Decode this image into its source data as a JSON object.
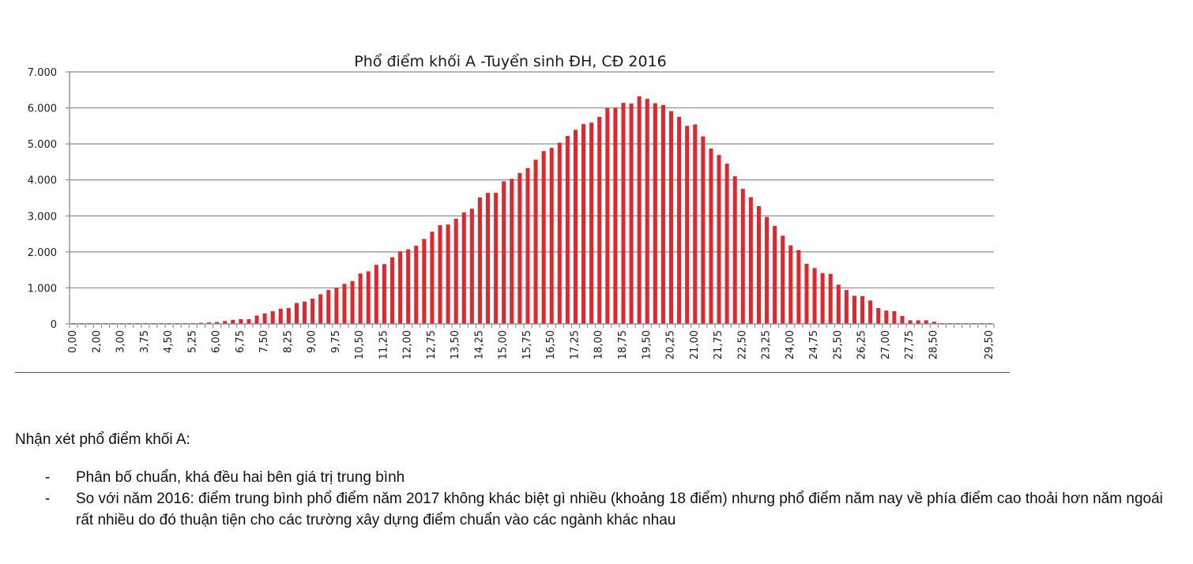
{
  "chart_data": {
    "type": "bar",
    "title": "Phổ điểm khối A -Tuyển sinh ĐH, CĐ 2016",
    "xlabel": "",
    "ylabel": "",
    "ylim": [
      0,
      7000
    ],
    "yticks": [
      "0",
      "1.000",
      "2.000",
      "3.000",
      "4.000",
      "5.000",
      "6.000",
      "7.000"
    ],
    "grid": true,
    "legend": null,
    "bar_color": "#e3262b",
    "xtick_labels": [
      "0,00",
      "2,00",
      "3,00",
      "3,75",
      "4,50",
      "5,25",
      "6,00",
      "6,75",
      "7,50",
      "8,25",
      "9,00",
      "9,75",
      "10,50",
      "11,25",
      "12,00",
      "12,75",
      "13,50",
      "14,25",
      "15,00",
      "15,75",
      "16,50",
      "17,25",
      "18,00",
      "18,75",
      "19,50",
      "20,25",
      "21,00",
      "21,75",
      "22,50",
      "23,25",
      "24,00",
      "24,75",
      "25,50",
      "26,25",
      "27,00",
      "27,75",
      "28,50",
      "29,50"
    ],
    "label_every": 3,
    "values": [
      20,
      20,
      20,
      20,
      20,
      20,
      20,
      20,
      20,
      20,
      20,
      20,
      20,
      20,
      20,
      20,
      30,
      40,
      50,
      80,
      110,
      130,
      130,
      230,
      290,
      350,
      420,
      440,
      580,
      620,
      700,
      820,
      940,
      1000,
      1110,
      1190,
      1400,
      1460,
      1640,
      1660,
      1850,
      2010,
      2070,
      2170,
      2360,
      2560,
      2740,
      2760,
      2920,
      3100,
      3200,
      3510,
      3640,
      3640,
      3960,
      4030,
      4190,
      4330,
      4560,
      4800,
      4890,
      5030,
      5220,
      5390,
      5550,
      5590,
      5750,
      5990,
      6000,
      6140,
      6120,
      6320,
      6250,
      6130,
      6080,
      5910,
      5750,
      5500,
      5540,
      5210,
      4870,
      4690,
      4450,
      4100,
      3750,
      3520,
      3270,
      2970,
      2720,
      2450,
      2180,
      2050,
      1670,
      1550,
      1410,
      1390,
      1090,
      940,
      780,
      770,
      650,
      440,
      370,
      350,
      220,
      100,
      100,
      100,
      60,
      20,
      20,
      20,
      20,
      20,
      20,
      20
    ]
  },
  "notes": {
    "heading": "Nhận xét phổ điểm khối A:",
    "bullets": [
      {
        "dash": "-",
        "text": "Phân bố chuẩn, khá đều hai bên giá trị trung bình"
      },
      {
        "dash": "-",
        "text": "So với năm 2016: điểm trung bình phổ điểm năm 2017 không khác biệt gì nhiều (khoảng 18 điểm) nhưng phổ điểm năm nay về phía điểm cao thoải hơn năm ngoái rất nhiều do đó thuận tiện cho các trường xây dựng điểm chuẩn vào các ngành khác nhau"
      }
    ]
  }
}
